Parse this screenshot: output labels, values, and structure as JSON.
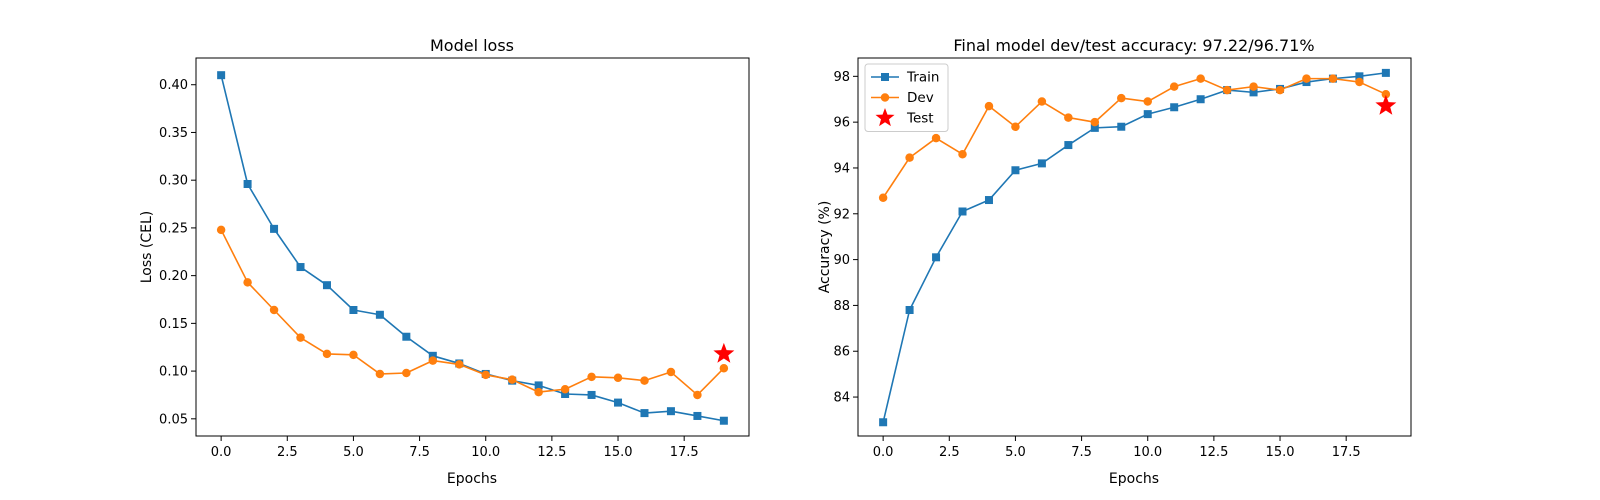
{
  "figure": {
    "background": "#ffffff"
  },
  "chart_data": [
    {
      "type": "line",
      "title": "Model loss",
      "xlabel": "Epochs",
      "ylabel": "Loss (CEL)",
      "xlim": [
        -0.95,
        19.95
      ],
      "ylim": [
        0.032,
        0.428
      ],
      "xticks": [
        0.0,
        2.5,
        5.0,
        7.5,
        10.0,
        12.5,
        15.0,
        17.5
      ],
      "xtick_labels": [
        "0.0",
        "2.5",
        "5.0",
        "7.5",
        "10.0",
        "12.5",
        "15.0",
        "17.5"
      ],
      "yticks": [
        0.05,
        0.1,
        0.15,
        0.2,
        0.25,
        0.3,
        0.35,
        0.4
      ],
      "ytick_labels": [
        "0.05",
        "0.10",
        "0.15",
        "0.20",
        "0.25",
        "0.30",
        "0.35",
        "0.40"
      ],
      "grid": false,
      "legend": null,
      "x": [
        0,
        1,
        2,
        3,
        4,
        5,
        6,
        7,
        8,
        9,
        10,
        11,
        12,
        13,
        14,
        15,
        16,
        17,
        18,
        19
      ],
      "series": [
        {
          "color": "#1f77b4",
          "marker": "square",
          "values": [
            0.41,
            0.296,
            0.249,
            0.209,
            0.19,
            0.164,
            0.159,
            0.136,
            0.116,
            0.108,
            0.097,
            0.09,
            0.085,
            0.076,
            0.075,
            0.067,
            0.056,
            0.058,
            0.053,
            0.048
          ]
        },
        {
          "color": "#ff7f0e",
          "marker": "circle",
          "values": [
            0.248,
            0.193,
            0.164,
            0.135,
            0.118,
            0.117,
            0.097,
            0.098,
            0.111,
            0.107,
            0.096,
            0.091,
            0.078,
            0.081,
            0.094,
            0.093,
            0.09,
            0.099,
            0.075,
            0.103
          ]
        },
        {
          "color": "#ff0000",
          "marker": "star",
          "x": [
            19
          ],
          "values": [
            0.118
          ]
        }
      ]
    },
    {
      "type": "line",
      "title": "Final model dev/test accuracy: 97.22/96.71%",
      "xlabel": "Epochs",
      "ylabel": "Accuracy (%)",
      "xlim": [
        -0.95,
        19.95
      ],
      "ylim": [
        82.3,
        98.8
      ],
      "xticks": [
        0.0,
        2.5,
        5.0,
        7.5,
        10.0,
        12.5,
        15.0,
        17.5
      ],
      "xtick_labels": [
        "0.0",
        "2.5",
        "5.0",
        "7.5",
        "10.0",
        "12.5",
        "15.0",
        "17.5"
      ],
      "yticks": [
        84,
        86,
        88,
        90,
        92,
        94,
        96,
        98
      ],
      "ytick_labels": [
        "84",
        "86",
        "88",
        "90",
        "92",
        "94",
        "96",
        "98"
      ],
      "grid": false,
      "legend": "top-left",
      "x": [
        0,
        1,
        2,
        3,
        4,
        5,
        6,
        7,
        8,
        9,
        10,
        11,
        12,
        13,
        14,
        15,
        16,
        17,
        18,
        19
      ],
      "series": [
        {
          "name": "Train",
          "color": "#1f77b4",
          "marker": "square",
          "values": [
            82.9,
            87.8,
            90.1,
            92.1,
            92.6,
            93.9,
            94.2,
            95.0,
            95.75,
            95.8,
            96.35,
            96.65,
            97.0,
            97.4,
            97.3,
            97.45,
            97.75,
            97.9,
            98.0,
            98.15
          ]
        },
        {
          "name": "Dev",
          "color": "#ff7f0e",
          "marker": "circle",
          "values": [
            92.7,
            94.45,
            95.3,
            94.6,
            96.7,
            95.8,
            96.9,
            96.2,
            96.0,
            97.05,
            96.9,
            97.55,
            97.9,
            97.4,
            97.55,
            97.4,
            97.9,
            97.9,
            97.75,
            97.22
          ]
        },
        {
          "name": "Test",
          "color": "#ff0000",
          "marker": "star",
          "x": [
            19
          ],
          "values": [
            96.71
          ]
        }
      ]
    }
  ]
}
